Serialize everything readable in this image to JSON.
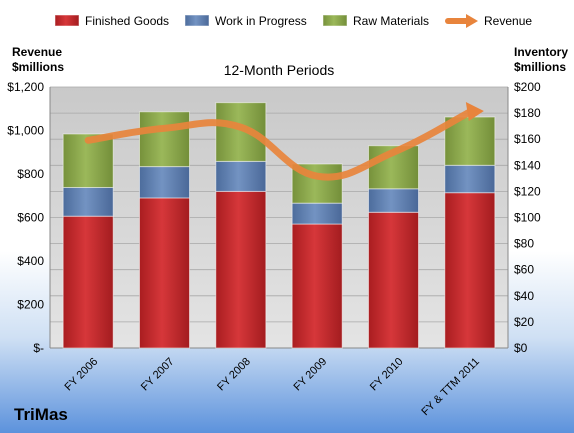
{
  "company": "TriMas",
  "colors": {
    "finished_goods": "#c4262a",
    "work_in_progress": "#5d7fb2",
    "raw_materials": "#8ba84a",
    "revenue": "#e8843c"
  },
  "chart_data": {
    "type": "bar",
    "stacked": true,
    "title": "12-Month Periods",
    "ylabel_left": "Revenue\n$millions",
    "ylabel_right": "Inventory\n$millions",
    "categories": [
      "FY 2006",
      "FY 2007",
      "FY 2008",
      "FY 2009",
      "FY 2010",
      "FY & TTM 2011"
    ],
    "series": [
      {
        "name": "Finished Goods",
        "axis": "right",
        "type": "bar",
        "values": [
          101,
          115,
          120,
          95,
          104,
          119
        ]
      },
      {
        "name": "Work in Progress",
        "axis": "right",
        "type": "bar",
        "values": [
          22,
          24,
          23,
          16,
          18,
          21
        ]
      },
      {
        "name": "Raw Materials",
        "axis": "right",
        "type": "bar",
        "values": [
          41,
          42,
          45,
          30,
          33,
          37
        ]
      },
      {
        "name": "Revenue",
        "axis": "left",
        "type": "line",
        "values": [
          955,
          1010,
          1015,
          790,
          900,
          1085
        ]
      }
    ],
    "y_left": {
      "min": 0,
      "max": 1200,
      "ticks": [
        "$-",
        "$200",
        "$400",
        "$600",
        "$800",
        "$1,000",
        "$1,200"
      ]
    },
    "y_right": {
      "min": 0,
      "max": 200,
      "ticks": [
        "$0",
        "$20",
        "$40",
        "$60",
        "$80",
        "$100",
        "$120",
        "$140",
        "$160",
        "$180",
        "$200"
      ]
    },
    "legend_position": "top",
    "grid": true
  }
}
